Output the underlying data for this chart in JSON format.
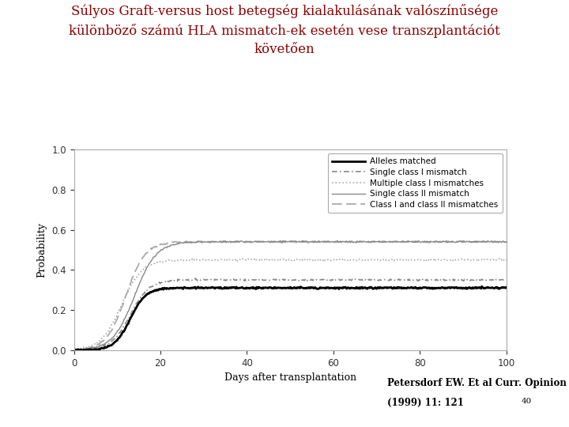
{
  "title_line1": "Súlyos Graft-versus host betegség kialakulásának valószínűsége",
  "title_line2": "különböző számú HLA mismatch-ek esetén vese transzplantációt",
  "title_line3": "követően",
  "title_color": "#8B0000",
  "xlabel": "Days after transplantation",
  "ylabel": "Probability",
  "xlim": [
    0,
    100
  ],
  "ylim": [
    0.0,
    1.0
  ],
  "xticks": [
    0,
    20,
    40,
    60,
    80,
    100
  ],
  "yticks": [
    0.0,
    0.2,
    0.4,
    0.6,
    0.8,
    1.0
  ],
  "citation_line1": "Petersdorf EW. Et al Curr. Opinion Immun",
  "citation_line2": "(1999) 11: 121",
  "citation_number": "40",
  "legend_labels": [
    "Alleles matched",
    "Single class I mismatch",
    "Multiple class I mismatches",
    "Single class II mismatch",
    "Class I and class II mismatches"
  ],
  "plateaus": [
    0.31,
    0.35,
    0.45,
    0.54,
    0.54
  ],
  "rise_centers": [
    13,
    13,
    11,
    14,
    12
  ],
  "sharpness": [
    0.55,
    0.45,
    0.42,
    0.4,
    0.45
  ]
}
